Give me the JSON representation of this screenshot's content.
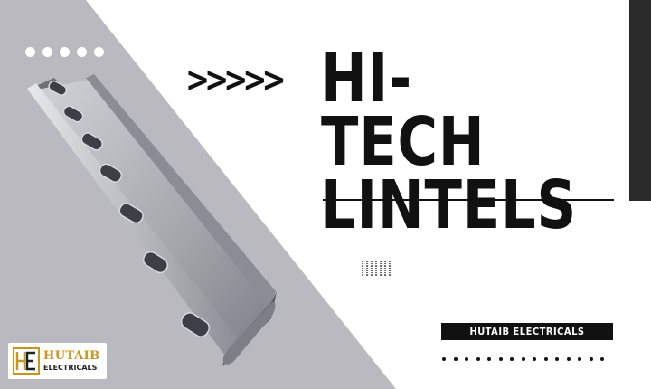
{
  "colors": {
    "grey_panel": "#b9b9bf",
    "dark": "#111111",
    "accent_gold": "#c9961a"
  },
  "chevrons": ">>>>>",
  "title": {
    "line1": "HI-TECH",
    "line2": "LINTELS"
  },
  "tag_label": "HUTAIB ELECTRICALS",
  "logo": {
    "initials": "HE",
    "name": "HUTAIB",
    "sub": "ELECTRICALS"
  },
  "product_image": {
    "subject": "slotted steel strut channel",
    "icon": "strut-channel-photo"
  }
}
